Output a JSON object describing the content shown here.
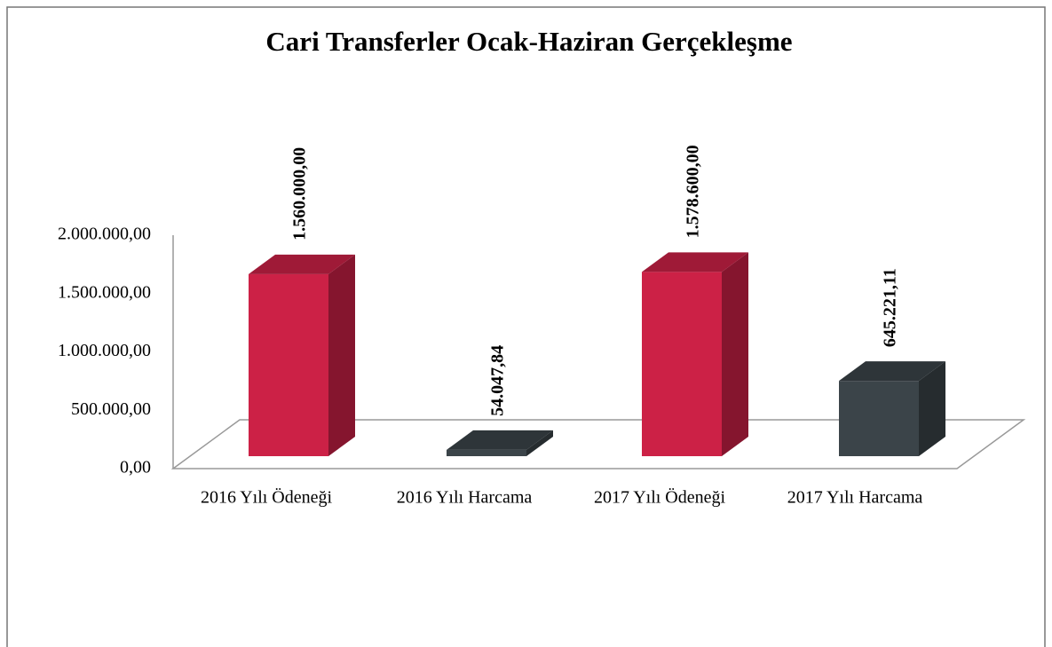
{
  "chart_data": {
    "type": "bar3d",
    "title": "Cari Transferler Ocak-Haziran Gerçekleşme",
    "categories": [
      "2016 Yılı Ödeneği",
      "2016 Yılı Harcama",
      "2017 Yılı Ödeneği",
      "2017 Yılı Harcama"
    ],
    "values": [
      1560000,
      54047.84,
      1578600,
      645221.11
    ],
    "value_labels": [
      "1.560.000,00",
      "54.047,84",
      "1.578.600,00",
      "645.221,11"
    ],
    "colors": [
      "#cc2146",
      "#3b4449",
      "#cc2146",
      "#3b4449"
    ],
    "ylim": [
      0,
      2000000
    ],
    "yticks": [
      {
        "value": 0,
        "label": "0,00"
      },
      {
        "value": 500000,
        "label": "500.000,00"
      },
      {
        "value": 1000000,
        "label": "1.000.000,00"
      },
      {
        "value": 1500000,
        "label": "1.500.000,00"
      },
      {
        "value": 2000000,
        "label": "2.000.000,00"
      }
    ],
    "grid": false
  }
}
